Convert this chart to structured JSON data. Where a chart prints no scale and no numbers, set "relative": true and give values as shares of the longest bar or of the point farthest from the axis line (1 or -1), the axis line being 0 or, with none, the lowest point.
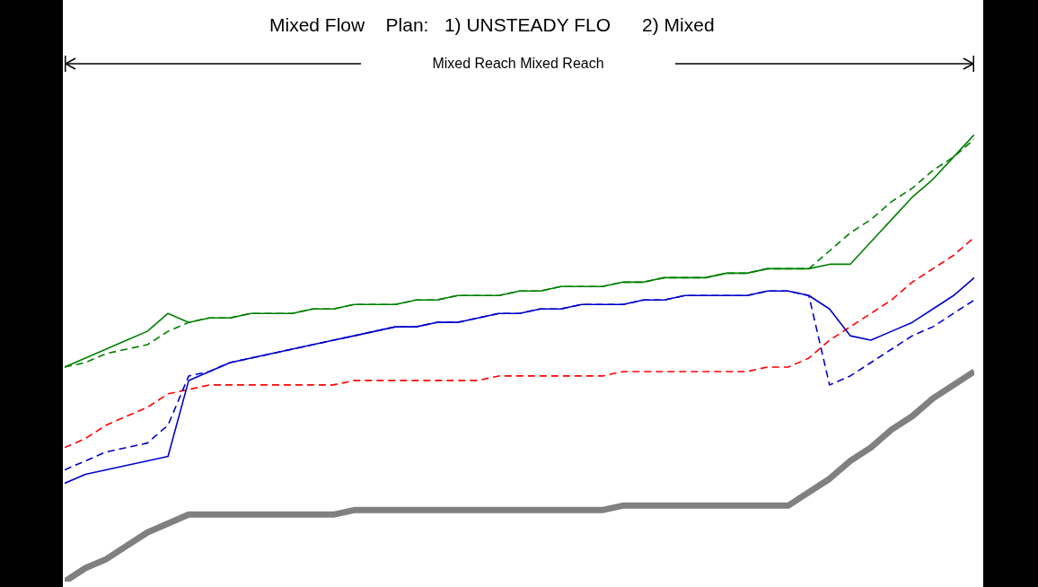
{
  "chart_data": {
    "type": "line",
    "relative": true,
    "title": "Mixed Flow    Plan:   1) UNSTEADY FLO      2) Mixed",
    "subtitle": "Mixed Reach Mixed Reach",
    "categories": [
      null,
      null,
      null,
      null,
      null,
      null,
      null,
      null,
      null,
      null,
      null,
      null,
      null,
      null,
      null,
      null,
      null,
      null,
      null,
      null,
      null,
      null,
      null,
      null,
      null,
      null,
      null,
      null,
      null,
      null,
      null,
      null,
      null,
      null,
      null,
      null,
      null,
      null,
      null,
      null,
      null,
      null,
      null,
      null,
      null
    ],
    "series": [
      {
        "color": "#808080",
        "line_style": "solid",
        "values": [
          0,
          0.03,
          0.05,
          0.08,
          0.11,
          0.13,
          0.15,
          0.15,
          0.15,
          0.15,
          0.15,
          0.15,
          0.15,
          0.15,
          0.16,
          0.16,
          0.16,
          0.16,
          0.16,
          0.16,
          0.16,
          0.16,
          0.16,
          0.16,
          0.16,
          0.16,
          0.16,
          0.17,
          0.17,
          0.17,
          0.17,
          0.17,
          0.17,
          0.17,
          0.17,
          0.17,
          0.2,
          0.23,
          0.27,
          0.3,
          0.34,
          0.37,
          0.41,
          0.44,
          0.47
        ]
      },
      {
        "color": "#ff0000",
        "line_style": "dashed",
        "values": [
          0.3,
          0.32,
          0.35,
          0.37,
          0.39,
          0.42,
          0.43,
          0.44,
          0.44,
          0.44,
          0.44,
          0.44,
          0.44,
          0.44,
          0.45,
          0.45,
          0.45,
          0.45,
          0.45,
          0.45,
          0.45,
          0.46,
          0.46,
          0.46,
          0.46,
          0.46,
          0.46,
          0.47,
          0.47,
          0.47,
          0.47,
          0.47,
          0.47,
          0.47,
          0.48,
          0.48,
          0.5,
          0.54,
          0.57,
          0.6,
          0.63,
          0.67,
          0.7,
          0.73,
          0.77
        ]
      },
      {
        "color": "#0000cc",
        "line_style": "dashed",
        "values": [
          0.25,
          0.27,
          0.29,
          0.3,
          0.31,
          0.35,
          0.46,
          0.47,
          0.49,
          0.5,
          0.51,
          0.52,
          0.53,
          0.54,
          0.55,
          0.56,
          0.57,
          0.57,
          0.58,
          0.58,
          0.59,
          0.6,
          0.6,
          0.61,
          0.61,
          0.62,
          0.62,
          0.62,
          0.63,
          0.63,
          0.64,
          0.64,
          0.64,
          0.64,
          0.65,
          0.65,
          0.64,
          0.44,
          0.46,
          0.49,
          0.52,
          0.55,
          0.57,
          0.6,
          0.63
        ]
      },
      {
        "color": "#0000cc",
        "line_style": "solid",
        "values": [
          0.22,
          0.24,
          0.25,
          0.26,
          0.27,
          0.28,
          0.45,
          0.47,
          0.49,
          0.5,
          0.51,
          0.52,
          0.53,
          0.54,
          0.55,
          0.56,
          0.57,
          0.57,
          0.58,
          0.58,
          0.59,
          0.6,
          0.6,
          0.61,
          0.61,
          0.62,
          0.62,
          0.62,
          0.63,
          0.63,
          0.64,
          0.64,
          0.64,
          0.64,
          0.65,
          0.65,
          0.64,
          0.61,
          0.55,
          0.54,
          0.56,
          0.58,
          0.61,
          0.64,
          0.68
        ]
      },
      {
        "color": "#008000",
        "line_style": "dashed",
        "values": [
          0.48,
          0.49,
          0.51,
          0.52,
          0.53,
          0.56,
          0.58,
          0.59,
          0.59,
          0.6,
          0.6,
          0.6,
          0.61,
          0.61,
          0.62,
          0.62,
          0.62,
          0.63,
          0.63,
          0.64,
          0.64,
          0.64,
          0.65,
          0.65,
          0.66,
          0.66,
          0.66,
          0.67,
          0.67,
          0.68,
          0.68,
          0.68,
          0.69,
          0.69,
          0.7,
          0.7,
          0.7,
          0.74,
          0.78,
          0.81,
          0.85,
          0.88,
          0.92,
          0.95,
          0.99
        ]
      },
      {
        "color": "#008000",
        "line_style": "solid",
        "values": [
          0.48,
          0.5,
          0.52,
          0.54,
          0.56,
          0.6,
          0.58,
          0.59,
          0.59,
          0.6,
          0.6,
          0.6,
          0.61,
          0.61,
          0.62,
          0.62,
          0.62,
          0.63,
          0.63,
          0.64,
          0.64,
          0.64,
          0.65,
          0.65,
          0.66,
          0.66,
          0.66,
          0.67,
          0.67,
          0.68,
          0.68,
          0.68,
          0.69,
          0.69,
          0.7,
          0.7,
          0.7,
          0.71,
          0.71,
          0.76,
          0.81,
          0.86,
          0.9,
          0.95,
          1
        ]
      }
    ]
  }
}
